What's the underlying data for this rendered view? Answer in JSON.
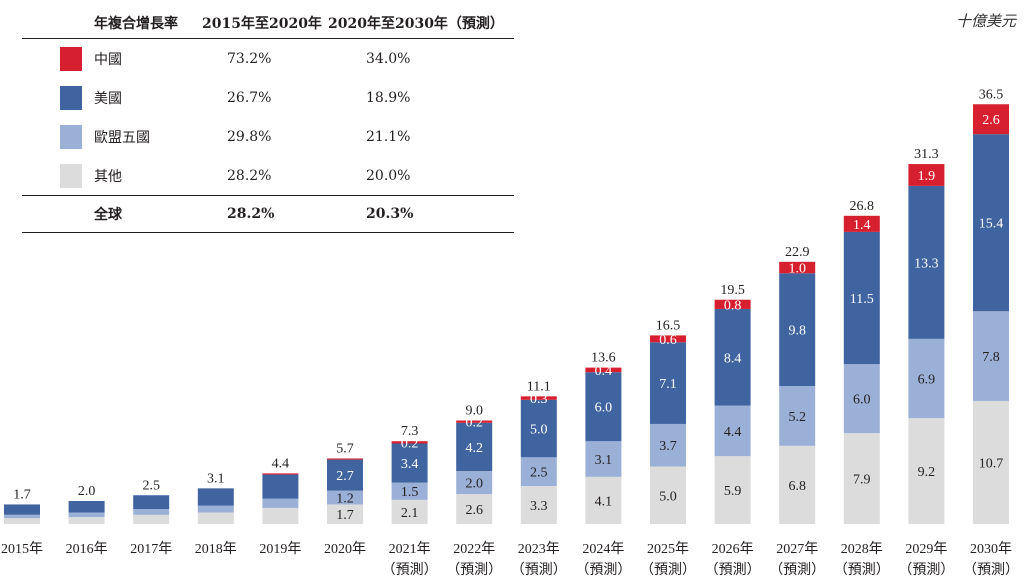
{
  "unit_label": "十億美元",
  "table": {
    "headers": [
      "年複合增長率",
      "2015年至2020年",
      "2020年至2030年（預測）"
    ],
    "rows": [
      {
        "name": "中國",
        "color": "#d7202f",
        "cagr_2015_2020": "73.2%",
        "cagr_2020_2030": "34.0%"
      },
      {
        "name": "美國",
        "color": "#3f64a0",
        "cagr_2015_2020": "26.7%",
        "cagr_2020_2030": "18.9%"
      },
      {
        "name": "歐盟五國",
        "color": "#9bb0d6",
        "cagr_2015_2020": "29.8%",
        "cagr_2020_2030": "21.1%"
      },
      {
        "name": "其他",
        "color": "#dcdcdc",
        "cagr_2015_2020": "28.2%",
        "cagr_2020_2030": "20.0%"
      }
    ],
    "total": {
      "name": "全球",
      "cagr_2015_2020": "28.2%",
      "cagr_2020_2030": "20.3%"
    }
  },
  "chart_data": {
    "type": "bar",
    "stacked": true,
    "categories": [
      "2015年",
      "2016年",
      "2017年",
      "2018年",
      "2019年",
      "2020年",
      "2021年",
      "2022年",
      "2023年",
      "2024年",
      "2025年",
      "2026年",
      "2027年",
      "2028年",
      "2029年",
      "2030年"
    ],
    "category_sublabels": [
      "",
      "",
      "",
      "",
      "",
      "",
      "（預測）",
      "（預測）",
      "（預測）",
      "（預測）",
      "（預測）",
      "（預測）",
      "（預測）",
      "（預測）",
      "（預測）",
      "（預測）"
    ],
    "series": [
      {
        "name": "其他",
        "color": "#dcdcdc",
        "label_color": "#231f20",
        "values": [
          0.5,
          0.6,
          0.8,
          1.0,
          1.4,
          1.7,
          2.1,
          2.6,
          3.3,
          4.1,
          5.0,
          5.9,
          6.8,
          7.9,
          9.2,
          10.7
        ],
        "labels": [
          "",
          "",
          "",
          "",
          "",
          "1.7",
          "2.1",
          "2.6",
          "3.3",
          "4.1",
          "5.0",
          "5.9",
          "6.8",
          "7.9",
          "9.2",
          "10.7"
        ]
      },
      {
        "name": "歐盟五國",
        "color": "#9bb0d6",
        "label_color": "#231f20",
        "values": [
          0.3,
          0.4,
          0.5,
          0.6,
          0.8,
          1.2,
          1.5,
          2.0,
          2.5,
          3.1,
          3.7,
          4.4,
          5.2,
          6.0,
          6.9,
          7.8
        ],
        "labels": [
          "",
          "",
          "",
          "",
          "",
          "1.2",
          "1.5",
          "2.0",
          "2.5",
          "3.1",
          "3.7",
          "4.4",
          "5.2",
          "6.0",
          "6.9",
          "7.8"
        ]
      },
      {
        "name": "美國",
        "color": "#3f64a0",
        "label_color": "#ffffff",
        "values": [
          0.9,
          1.0,
          1.2,
          1.5,
          2.1,
          2.7,
          3.4,
          4.2,
          5.0,
          6.0,
          7.1,
          8.4,
          9.8,
          11.5,
          13.3,
          15.4
        ],
        "labels": [
          "",
          "",
          "",
          "",
          "",
          "2.7",
          "3.4",
          "4.2",
          "5.0",
          "6.0",
          "7.1",
          "8.4",
          "9.8",
          "11.5",
          "13.3",
          "15.4"
        ]
      },
      {
        "name": "中國",
        "color": "#d7202f",
        "label_color": "#ffffff",
        "values": [
          0.0,
          0.0,
          0.0,
          0.0,
          0.1,
          0.1,
          0.2,
          0.2,
          0.3,
          0.4,
          0.6,
          0.8,
          1.0,
          1.4,
          1.9,
          2.6
        ],
        "labels": [
          "",
          "",
          "",
          "",
          "",
          "",
          "0.2",
          "0.2",
          "0.3",
          "0.4",
          "0.6",
          "0.8",
          "1.0",
          "1.4",
          "1.9",
          "2.6"
        ]
      }
    ],
    "totals": [
      "1.7",
      "2.0",
      "2.5",
      "3.1",
      "4.4",
      "5.7",
      "7.3",
      "9.0",
      "11.1",
      "13.6",
      "16.5",
      "19.5",
      "22.9",
      "26.8",
      "31.3",
      "36.5"
    ],
    "ylim": [
      0,
      36.5
    ],
    "xlabel": "",
    "ylabel": "",
    "grid": false
  }
}
